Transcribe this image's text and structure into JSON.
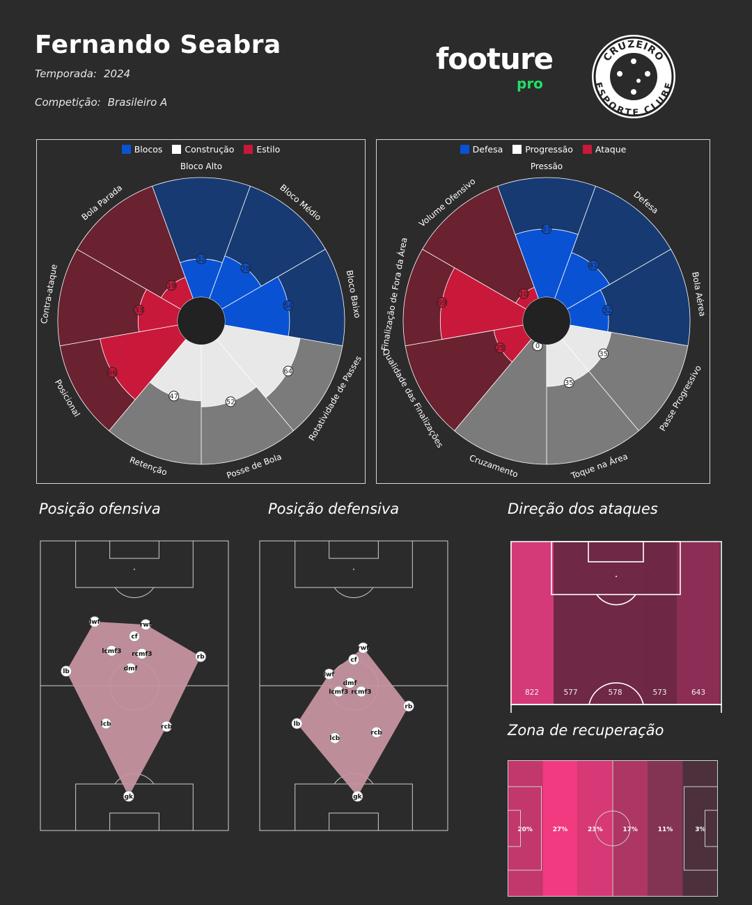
{
  "header": {
    "player_name": "Fernando Seabra",
    "season_label": "Temporada:",
    "season_value": "2024",
    "competition_label": "Competição:",
    "competition_value": "Brasileiro A"
  },
  "brand": {
    "logo_main": "footure",
    "logo_sub": "pro",
    "accent": "#22dd66"
  },
  "club": {
    "crest_top": "CRUZEIRO",
    "crest_bottom": "ESPORTE CLUBE"
  },
  "colors": {
    "background": "#2b2b2b",
    "blue": "#0a52d4",
    "blue_bg": "#173a72",
    "red": "#c8193a",
    "red_bg": "#6a2130",
    "white": "#e8e8e8",
    "grey_bg": "#7b7b7b",
    "shape": "#c5949f"
  },
  "sections": {
    "offensive": "Posição ofensiva",
    "defensive": "Posição defensiva",
    "attack_direction": "Direção dos ataques",
    "recovery": "Zona de recuperação"
  },
  "chart_data": [
    {
      "type": "polar-bar",
      "legend": [
        {
          "name": "Blocos",
          "color": "#0a52d4"
        },
        {
          "name": "Construção",
          "color": "#ffffff"
        },
        {
          "name": "Estilo",
          "color": "#c8193a"
        }
      ],
      "categories": [
        "Bloco Alto",
        "Bloco Médio",
        "Bloco Baixo",
        "Rotatividade de Passes",
        "Posse de Bola",
        "Retenção",
        "Posicional",
        "Contra-ataque",
        "Bola Parada"
      ],
      "groups": [
        "Blocos",
        "Blocos",
        "Blocos",
        "Construção",
        "Construção",
        "Construção",
        "Estilo",
        "Estilo",
        "Estilo"
      ],
      "values": [
        32,
        38,
        54,
        64,
        52,
        47,
        66,
        33,
        19
      ],
      "ylim": [
        0,
        100
      ]
    },
    {
      "type": "polar-bar",
      "legend": [
        {
          "name": "Defesa",
          "color": "#0a52d4"
        },
        {
          "name": "Progressão",
          "color": "#ffffff"
        },
        {
          "name": "Ataque",
          "color": "#c8193a"
        }
      ],
      "categories": [
        "Pressão",
        "Defesa",
        "Bola Aérea",
        "Passe Progressivo",
        "Toque na Área",
        "Cruzamento",
        "Qualidade das Finalizações",
        "Finalização de Fora da Área",
        "Volume Ofensivo"
      ],
      "groups": [
        "Defesa",
        "Defesa",
        "Defesa",
        "Progressão",
        "Progressão",
        "Progressão",
        "Ataque",
        "Ataque",
        "Ataque"
      ],
      "values": [
        57,
        41,
        32,
        35,
        35,
        0,
        25,
        69,
        10
      ],
      "ylim": [
        0,
        100
      ]
    },
    {
      "type": "scatter",
      "name": "offensive",
      "points": [
        {
          "label": "lwf",
          "x": 29,
          "y": 72
        },
        {
          "label": "rwf",
          "x": 56,
          "y": 71
        },
        {
          "label": "cf",
          "x": 50,
          "y": 67
        },
        {
          "label": "rb",
          "x": 85,
          "y": 60
        },
        {
          "label": "lcmf3",
          "x": 38,
          "y": 62
        },
        {
          "label": "rcmf3",
          "x": 54,
          "y": 61
        },
        {
          "label": "lb",
          "x": 14,
          "y": 55
        },
        {
          "label": "dmf",
          "x": 48,
          "y": 56
        },
        {
          "label": "lcb",
          "x": 35,
          "y": 37
        },
        {
          "label": "rcb",
          "x": 67,
          "y": 36
        },
        {
          "label": "gk",
          "x": 47,
          "y": 12
        }
      ]
    },
    {
      "type": "scatter",
      "name": "defensive",
      "points": [
        {
          "label": "rwf",
          "x": 55,
          "y": 63
        },
        {
          "label": "cf",
          "x": 50,
          "y": 59
        },
        {
          "label": "lwf",
          "x": 37,
          "y": 54
        },
        {
          "label": "dmf",
          "x": 48,
          "y": 51
        },
        {
          "label": "lcmf3",
          "x": 42,
          "y": 48
        },
        {
          "label": "rcmf3",
          "x": 54,
          "y": 48
        },
        {
          "label": "rb",
          "x": 79,
          "y": 43
        },
        {
          "label": "lb",
          "x": 20,
          "y": 37
        },
        {
          "label": "lcb",
          "x": 40,
          "y": 32
        },
        {
          "label": "rcb",
          "x": 62,
          "y": 34
        },
        {
          "label": "gk",
          "x": 52,
          "y": 12
        }
      ]
    },
    {
      "type": "bar",
      "name": "attack_direction",
      "values": [
        822,
        577,
        578,
        573,
        643
      ]
    },
    {
      "type": "bar",
      "name": "recovery",
      "values": [
        "20%",
        "27%",
        "23%",
        "17%",
        "11%",
        "3%"
      ],
      "shares": [
        20,
        27,
        23,
        17,
        11,
        3
      ]
    }
  ]
}
